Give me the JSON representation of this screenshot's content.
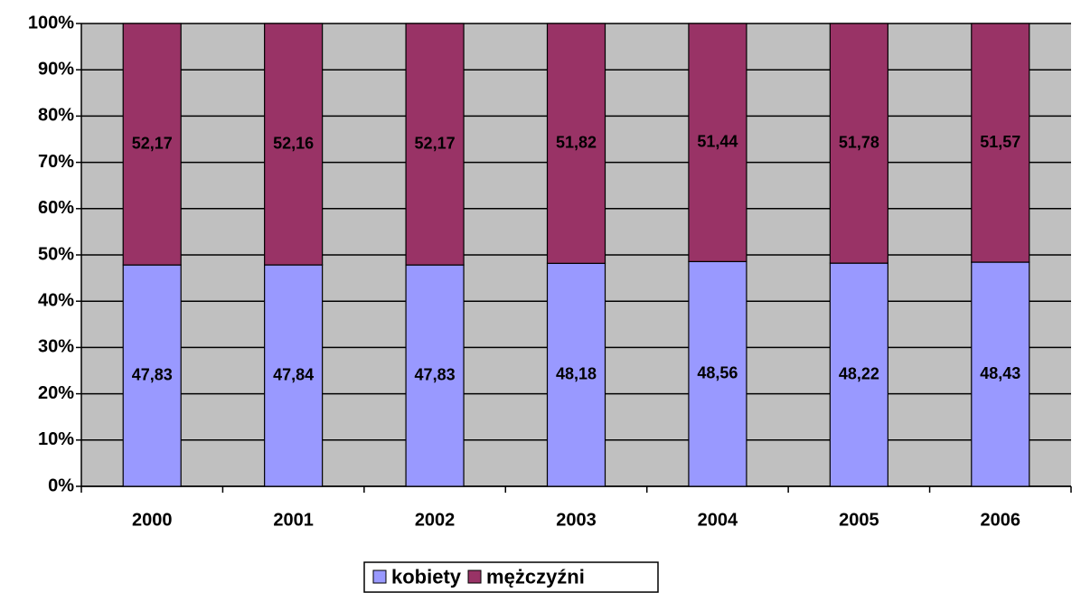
{
  "chart_data": {
    "type": "bar",
    "stacked": true,
    "categories": [
      "2000",
      "2001",
      "2002",
      "2003",
      "2004",
      "2005",
      "2006"
    ],
    "series": [
      {
        "name": "kobiety",
        "color": "#9999ff",
        "values": [
          47.83,
          47.84,
          47.83,
          48.18,
          48.56,
          48.22,
          48.43
        ],
        "value_labels": [
          "47,83",
          "47,84",
          "47,83",
          "48,18",
          "48,56",
          "48,22",
          "48,43"
        ]
      },
      {
        "name": "mężczyźni",
        "color": "#993366",
        "values": [
          52.17,
          52.16,
          52.17,
          51.82,
          51.44,
          51.78,
          51.57
        ],
        "value_labels": [
          "52,17",
          "52,16",
          "52,17",
          "51,82",
          "51,44",
          "51,78",
          "51,57"
        ]
      }
    ],
    "ylim": [
      0,
      100
    ],
    "yticks": [
      {
        "value": 0,
        "label": "0%"
      },
      {
        "value": 10,
        "label": "10%"
      },
      {
        "value": 20,
        "label": "20%"
      },
      {
        "value": 30,
        "label": "30%"
      },
      {
        "value": 40,
        "label": "40%"
      },
      {
        "value": 50,
        "label": "50%"
      },
      {
        "value": 60,
        "label": "60%"
      },
      {
        "value": 70,
        "label": "70%"
      },
      {
        "value": 80,
        "label": "80%"
      },
      {
        "value": 90,
        "label": "90%"
      },
      {
        "value": 100,
        "label": "100%"
      }
    ],
    "grid": true,
    "plot_background": "#c0c0c0",
    "legend": "bottom"
  }
}
